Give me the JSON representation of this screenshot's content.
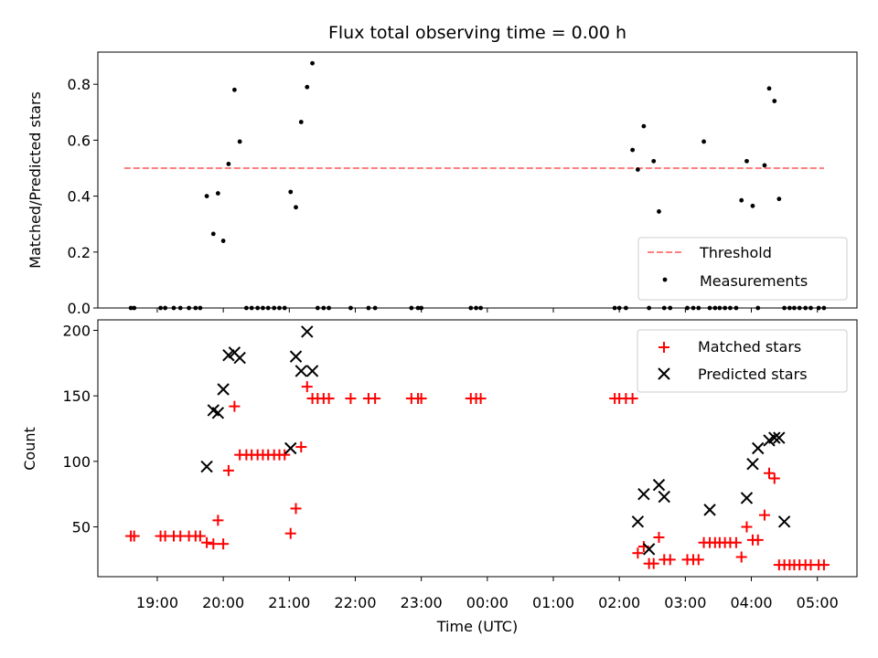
{
  "chart_data": [
    {
      "type": "scatter",
      "title": "Flux total observing time = 0.00 h",
      "xlabel": "",
      "ylabel": "Matched/Predicted stars",
      "xlim": [
        18.1,
        5.6
      ],
      "ylim": [
        0,
        0.915
      ],
      "yticks": [
        "0.0",
        "0.2",
        "0.4",
        "0.6",
        "0.8"
      ],
      "grid": false,
      "legend": "lower-right",
      "series": [
        {
          "name": "Threshold",
          "kind": "dashed-line",
          "color": "#ff7f7f",
          "x": [
            18.5,
            5.1
          ],
          "y": [
            0.5,
            0.5
          ]
        },
        {
          "name": "Measurements",
          "kind": "points",
          "color": "#000000",
          "x": [
            18.6,
            18.65,
            19.05,
            19.12,
            19.25,
            19.35,
            19.48,
            19.58,
            19.65,
            19.75,
            19.85,
            19.92,
            20.0,
            20.08,
            20.17,
            20.25,
            20.35,
            20.43,
            20.52,
            20.6,
            20.68,
            20.77,
            20.85,
            20.93,
            21.02,
            21.1,
            21.18,
            21.27,
            21.35,
            21.43,
            21.52,
            21.6,
            21.93,
            22.2,
            22.3,
            22.85,
            22.95,
            23.0,
            23.75,
            23.83,
            23.9,
            1.93,
            2.0,
            2.1,
            2.2,
            2.28,
            2.37,
            2.45,
            2.52,
            2.6,
            2.68,
            2.77,
            3.03,
            3.12,
            3.2,
            3.28,
            3.37,
            3.45,
            3.52,
            3.6,
            3.68,
            3.77,
            3.85,
            3.93,
            4.02,
            4.1,
            4.2,
            4.27,
            4.35,
            4.42,
            4.5,
            4.58,
            4.65,
            4.73,
            4.82,
            4.9,
            5.02,
            5.1
          ],
          "y": [
            0,
            0,
            0,
            0,
            0,
            0,
            0,
            0,
            0,
            0.4,
            0.265,
            0.41,
            0.24,
            0.515,
            0.78,
            0.595,
            0,
            0,
            0,
            0,
            0,
            0,
            0,
            0,
            0.415,
            0.36,
            0.665,
            0.79,
            0.875,
            0,
            0,
            0,
            0,
            0,
            0,
            0,
            0,
            0,
            0,
            0,
            0,
            0,
            0,
            0,
            0.565,
            0.495,
            0.65,
            0,
            0.525,
            0.345,
            0,
            0,
            0,
            0,
            0,
            0.595,
            0,
            0,
            0,
            0,
            0,
            0,
            0.385,
            0.525,
            0.365,
            0,
            0.51,
            0.785,
            0.74,
            0.39,
            0,
            0,
            0,
            0,
            0,
            0,
            0,
            0
          ]
        }
      ]
    },
    {
      "type": "scatter",
      "title": "",
      "xlabel": "Time (UTC)",
      "ylabel": "Count",
      "xlim": [
        18.1,
        5.6
      ],
      "ylim": [
        12,
        208
      ],
      "yticks": [
        "50",
        "100",
        "150",
        "200"
      ],
      "xticks": [
        "19:00",
        "20:00",
        "21:00",
        "22:00",
        "23:00",
        "00:00",
        "01:00",
        "02:00",
        "03:00",
        "04:00",
        "05:00"
      ],
      "grid": false,
      "legend": "top-right",
      "series": [
        {
          "name": "Matched stars",
          "marker": "plus",
          "color": "#ff0000",
          "x": [
            18.6,
            18.65,
            19.05,
            19.12,
            19.25,
            19.35,
            19.48,
            19.58,
            19.65,
            19.75,
            19.85,
            19.92,
            20.0,
            20.08,
            20.17,
            20.25,
            20.35,
            20.43,
            20.52,
            20.6,
            20.68,
            20.77,
            20.85,
            20.93,
            21.02,
            21.1,
            21.18,
            21.27,
            21.35,
            21.43,
            21.52,
            21.6,
            21.93,
            22.2,
            22.3,
            22.85,
            22.95,
            23.0,
            23.75,
            23.83,
            23.9,
            1.93,
            2.0,
            2.1,
            2.2,
            2.28,
            2.37,
            2.45,
            2.52,
            2.6,
            2.68,
            2.77,
            3.03,
            3.12,
            3.2,
            3.28,
            3.37,
            3.45,
            3.52,
            3.6,
            3.68,
            3.77,
            3.85,
            3.93,
            4.02,
            4.1,
            4.2,
            4.27,
            4.35,
            4.42,
            4.5,
            4.58,
            4.65,
            4.73,
            4.82,
            4.9,
            5.02,
            5.1
          ],
          "y": [
            43,
            43,
            43,
            43,
            43,
            43,
            43,
            43,
            43,
            38,
            37,
            55,
            37,
            93,
            142,
            105,
            105,
            105,
            105,
            105,
            105,
            105,
            105,
            105,
            45,
            64,
            111,
            157,
            148,
            148,
            148,
            148,
            148,
            148,
            148,
            148,
            148,
            148,
            148,
            148,
            148,
            148,
            148,
            148,
            148,
            30,
            35,
            22,
            22,
            42,
            25,
            25,
            25,
            25,
            25,
            38,
            38,
            38,
            38,
            38,
            38,
            38,
            27,
            50,
            40,
            40,
            59,
            91,
            87,
            21,
            21,
            21,
            21,
            21,
            21,
            21,
            21,
            21
          ]
        },
        {
          "name": "Predicted stars",
          "marker": "x",
          "color": "#000000",
          "x": [
            19.75,
            19.85,
            19.92,
            20.0,
            20.08,
            20.17,
            20.25,
            21.02,
            21.1,
            21.18,
            21.27,
            21.35,
            2.28,
            2.37,
            2.45,
            2.6,
            2.68,
            3.37,
            3.93,
            4.02,
            4.1,
            4.27,
            4.35,
            4.42,
            4.5
          ],
          "y": [
            96,
            139,
            137,
            155,
            181,
            183,
            179,
            110,
            180,
            169,
            199,
            169,
            54,
            75,
            33,
            82,
            73,
            63,
            72,
            98,
            110,
            116,
            118,
            118,
            54
          ]
        }
      ]
    }
  ]
}
